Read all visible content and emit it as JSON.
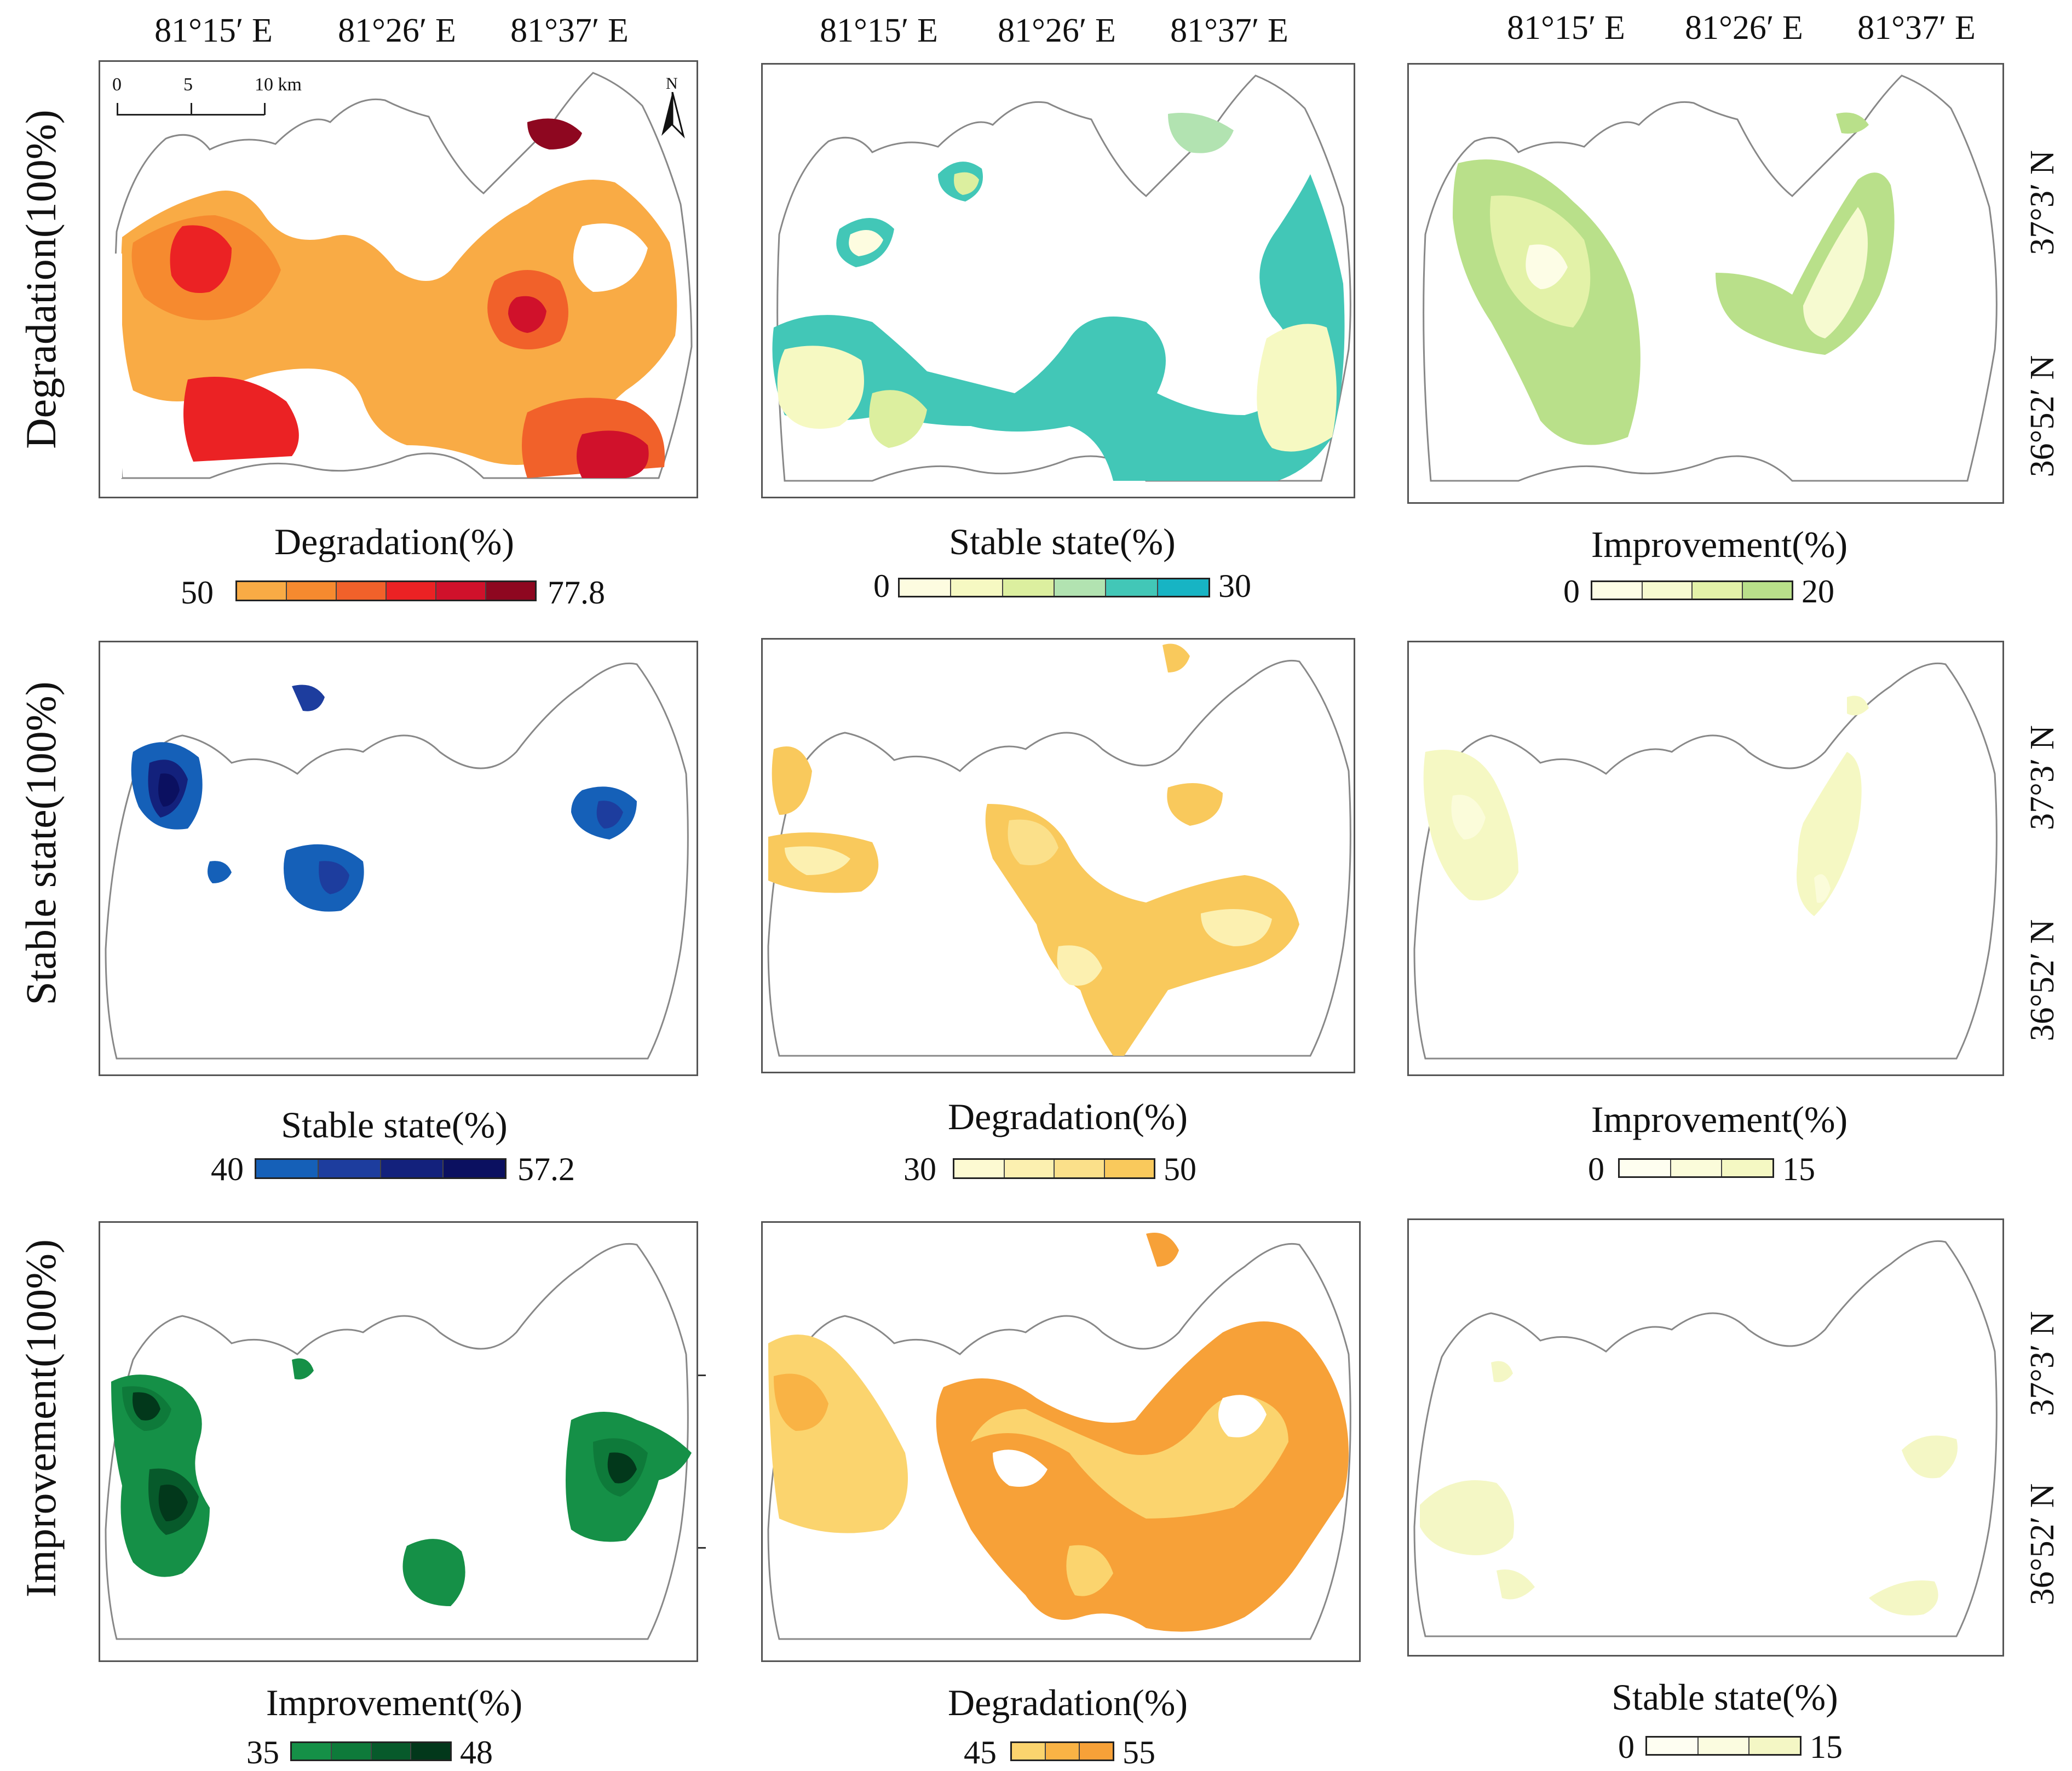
{
  "longitude_labels": [
    "81°15′ E",
    "81°26′ E",
    "81°37′ E"
  ],
  "latitude_labels": [
    "37°3′ N",
    "36°52′ N"
  ],
  "row_titles": [
    "Degradation(100%)",
    "Stable state(100%)",
    "Improvement(100%)"
  ],
  "scale_bar": {
    "ticks": [
      "0",
      "5",
      "10 km"
    ],
    "north": "N"
  },
  "panels": [
    {
      "legend": {
        "title": "Degradation(%)",
        "min": "50",
        "max": "77.8",
        "colors": [
          "#f9ab45",
          "#f68a2f",
          "#f1612a",
          "#eb2224",
          "#d0112b",
          "#8e0720"
        ]
      }
    },
    {
      "legend": {
        "title": "Stable state(%)",
        "min": "0",
        "max": "30",
        "colors": [
          "#fdfce0",
          "#f6f9c2",
          "#dcef9f",
          "#b2e3b1",
          "#42c7b7",
          "#17b4c4"
        ]
      }
    },
    {
      "legend": {
        "title": "Improvement(%)",
        "min": "0",
        "max": "20",
        "colors": [
          "#fdfde6",
          "#f6fad0",
          "#e3f2a8",
          "#b9e08a"
        ]
      }
    },
    {
      "legend": {
        "title": "Stable state(%)",
        "min": "40",
        "max": "57.2",
        "colors": [
          "#1560b8",
          "#1d3d9e",
          "#13217c",
          "#0b1060"
        ]
      }
    },
    {
      "legend": {
        "title": "Degradation(%)",
        "min": "30",
        "max": "50",
        "colors": [
          "#fdfad2",
          "#fcf0b0",
          "#fbe08a",
          "#f9c95c"
        ]
      }
    },
    {
      "legend": {
        "title": "Improvement(%)",
        "min": "0",
        "max": "15",
        "colors": [
          "#fefef0",
          "#fbfcda",
          "#f5f8c3"
        ]
      }
    },
    {
      "legend": {
        "title": "Improvement(%)",
        "min": "35",
        "max": "48",
        "colors": [
          "#159047",
          "#0e7a3a",
          "#075a2b",
          "#02381b"
        ]
      }
    },
    {
      "legend": {
        "title": "Degradation(%)",
        "min": "45",
        "max": "55",
        "colors": [
          "#fbd46e",
          "#f9b345",
          "#f7a138"
        ]
      }
    },
    {
      "legend": {
        "title": "Stable state(%)",
        "min": "0",
        "max": "15",
        "colors": [
          "#fefef2",
          "#fbfce0",
          "#f4f7c5"
        ]
      }
    }
  ]
}
